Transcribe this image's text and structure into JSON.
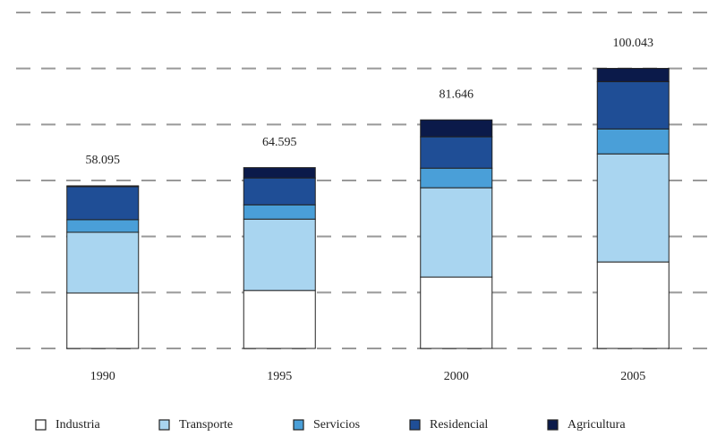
{
  "chart_data": {
    "type": "stacked_bar",
    "categories": [
      "1990",
      "1995",
      "2000",
      "2005"
    ],
    "series": [
      {
        "name": "Industria",
        "color": "#ffffff",
        "values": [
          19800,
          20700,
          25500,
          30900
        ]
      },
      {
        "name": "Transporte",
        "color": "#a9d5f0",
        "values": [
          21700,
          25500,
          31900,
          38600
        ]
      },
      {
        "name": "Servicios",
        "color": "#4a9fd8",
        "values": [
          4500,
          5100,
          7000,
          8900
        ]
      },
      {
        "name": "Residencial",
        "color": "#1f4e96",
        "values": [
          11800,
          9600,
          11200,
          16900
        ]
      },
      {
        "name": "Agricultura",
        "color": "#0b1a4a",
        "values": [
          295,
          3695,
          6046,
          4743
        ]
      }
    ],
    "totals": {
      "values": [
        58095,
        64595,
        81646,
        100043
      ],
      "value_labels": [
        "58.095",
        "64.595",
        "81.646",
        "100.043"
      ]
    },
    "ylim": [
      0,
      120000
    ],
    "gridlines": [
      0,
      20000,
      40000,
      60000,
      80000,
      100000,
      120000
    ],
    "grid": true
  }
}
